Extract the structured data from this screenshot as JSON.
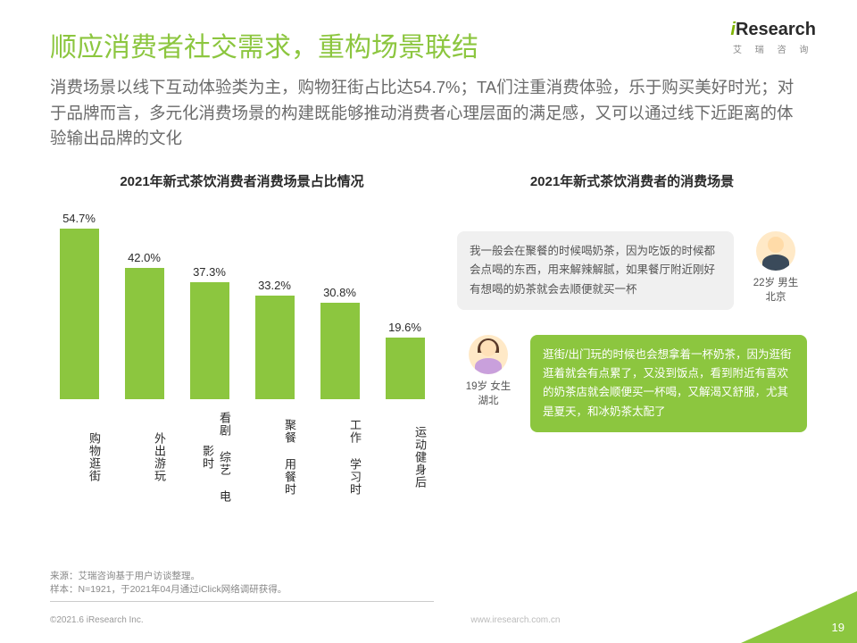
{
  "logo": {
    "brand_i": "i",
    "brand_rest": "Research",
    "sub": "艾 瑞 咨 询"
  },
  "title": "顺应消费者社交需求，重构场景联结",
  "subtitle": "消费场景以线下互动体验类为主，购物狂街占比达54.7%；TA们注重消费体验，乐于购买美好时光；对于品牌而言，多元化消费场景的构建既能够推动消费者心理层面的满足感，又可以通过线下近距离的体验输出品牌的文化",
  "chart": {
    "title": "2021年新式茶饮消费者消费场景占比情况",
    "type": "bar",
    "ymax": 60,
    "bar_color": "#8cc63f",
    "label_color": "#2a2a2a",
    "value_fontsize": 13,
    "bars": [
      {
        "label": "购物逛街",
        "value": 54.7,
        "display": "54.7%"
      },
      {
        "label": "外出游玩",
        "value": 42.0,
        "display": "42.0%"
      },
      {
        "label": "看剧 综艺 电影时",
        "value": 37.3,
        "display": "37.3%"
      },
      {
        "label": "聚餐 用餐时",
        "value": 33.2,
        "display": "33.2%"
      },
      {
        "label": "工作 学习时",
        "value": 30.8,
        "display": "30.8%"
      },
      {
        "label": "运动健身后",
        "value": 19.6,
        "display": "19.6%"
      }
    ]
  },
  "scenes": {
    "title": "2021年新式茶饮消费者的消费场景",
    "items": [
      {
        "bubble_style": "gray",
        "avatar_side": "right",
        "avatar_gender": "male",
        "avatar_label": "22岁 男生\n北京",
        "text": "我一般会在聚餐的时候喝奶茶，因为吃饭的时候都会点喝的东西，用来解辣解腻，如果餐厅附近刚好有想喝的奶茶就会去顺便就买一杯"
      },
      {
        "bubble_style": "green",
        "avatar_side": "left",
        "avatar_gender": "female",
        "avatar_label": "19岁 女生\n湖北",
        "text": "逛街/出门玩的时候也会想拿着一杯奶茶，因为逛街逛着就会有点累了，又没到饭点，看到附近有喜欢的奶茶店就会顺便买一杯喝，又解渴又舒服，尤其是夏天，和冰奶茶太配了"
      }
    ]
  },
  "source": {
    "line1": "来源：艾瑞咨询基于用户访谈整理。",
    "line2": "样本：N=1921，于2021年04月通过iClick网络调研获得。"
  },
  "footer": "©2021.6 iResearch Inc.",
  "footer_right": "www.iresearch.com.cn",
  "page": "19",
  "colors": {
    "accent": "#8cc63f",
    "corner_blue": "#00a0e0"
  }
}
